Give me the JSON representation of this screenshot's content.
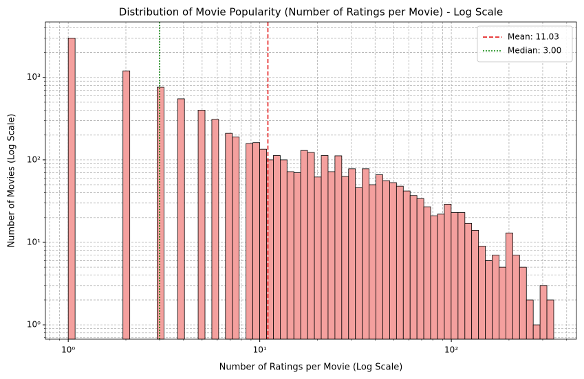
{
  "chart_data": {
    "type": "histogram",
    "title": "Distribution of Movie Popularity (Number of Ratings per Movie) - Log Scale",
    "x_label": "Number of Ratings per Movie (Log Scale)",
    "y_label": "Number of Movies (Log Scale)",
    "log_x": true,
    "log_y": true,
    "grid": "both",
    "legend": "upper right",
    "color": "#f4a09e",
    "edgecolor": "#000000",
    "bins": [
      1,
      1.086,
      1.179,
      1.28,
      1.389,
      1.508,
      1.637,
      1.778,
      1.93,
      2.096,
      2.275,
      2.47,
      2.682,
      2.911,
      3.161,
      3.431,
      3.725,
      4.045,
      4.391,
      4.767,
      5.176,
      5.619,
      6.1,
      6.623,
      7.19,
      7.806,
      8.475,
      9.203,
      9.991,
      10.85,
      11.78,
      12.79,
      13.88,
      15.07,
      16.36,
      17.76,
      19.28,
      20.94,
      22.73,
      24.68,
      26.79,
      29.09,
      31.58,
      34.28,
      37.22,
      40.41,
      43.87,
      47.63,
      51.71,
      56.14,
      60.95,
      66.17,
      71.84,
      78.0,
      84.68,
      91.94,
      99.8,
      108.4,
      117.7,
      127.7,
      138.7,
      150.6,
      163.5,
      177.5,
      192.7,
      209.2,
      227.1,
      246.6,
      267.7,
      290.6,
      315.5,
      342.5
    ],
    "counts": [
      3000,
      0,
      0,
      0,
      0,
      0,
      0,
      0,
      1200,
      0,
      0,
      0,
      0,
      760,
      0,
      0,
      550,
      0,
      0,
      400,
      0,
      310,
      0,
      210,
      190,
      0,
      158,
      162,
      135,
      100,
      113,
      100,
      72,
      70,
      130,
      123,
      62,
      113,
      72,
      112,
      63,
      78,
      46,
      78,
      50,
      66,
      56,
      53,
      48,
      42,
      37,
      34,
      27,
      21,
      22,
      29,
      23,
      23,
      17,
      14,
      9,
      6,
      7,
      5,
      13,
      7,
      5,
      2,
      1,
      3,
      2
    ],
    "lines": [
      {
        "name": "Mean: 11.03",
        "value": 11.03,
        "color": "#e00000",
        "style": "dashed"
      },
      {
        "name": "Median: 3.00",
        "value": 3.0,
        "color": "#008000",
        "style": "dotted"
      }
    ],
    "xlim": [
      0.76,
      450
    ],
    "ylim": [
      0.67,
      4700
    ],
    "xticks": [
      {
        "value": 1,
        "label": "10⁰"
      },
      {
        "value": 10,
        "label": "10¹"
      },
      {
        "value": 100,
        "label": "10²"
      }
    ],
    "yticks": [
      {
        "value": 1,
        "label": "10⁰"
      },
      {
        "value": 10,
        "label": "10¹"
      },
      {
        "value": 100,
        "label": "10²"
      },
      {
        "value": 1000,
        "label": "10³"
      }
    ],
    "xminorticks": [
      0.8,
      0.9,
      2,
      3,
      4,
      5,
      6,
      7,
      8,
      9,
      20,
      30,
      40,
      50,
      60,
      70,
      80,
      90,
      200,
      300,
      400
    ],
    "yminorticks": [
      0.7,
      0.8,
      0.9,
      2,
      3,
      4,
      5,
      6,
      7,
      8,
      9,
      20,
      30,
      40,
      50,
      60,
      70,
      80,
      90,
      200,
      300,
      400,
      500,
      600,
      700,
      800,
      900,
      2000,
      3000,
      4000
    ]
  }
}
